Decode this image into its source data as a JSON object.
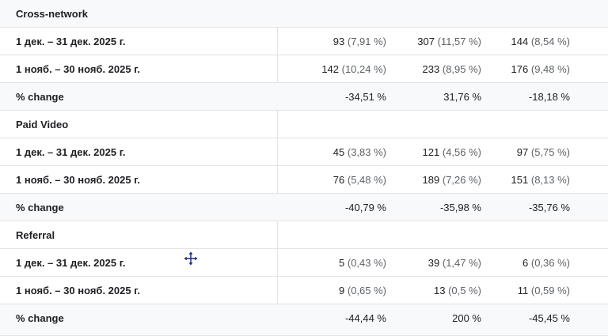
{
  "groups": [
    {
      "title": "Cross-network",
      "rows": [
        {
          "label": "1 дек. – 31 дек. 2025 г.",
          "c1v": "93",
          "c1p": " (7,91 %)",
          "c2v": "307",
          "c2p": " (11,57 %)",
          "c3v": "144",
          "c3p": " (8,54 %)"
        },
        {
          "label": "1 нояб. – 30 нояб. 2025 г.",
          "c1v": "142",
          "c1p": " (10,24 %)",
          "c2v": "233",
          "c2p": " (8,95 %)",
          "c3v": "176",
          "c3p": " (9,48 %)"
        }
      ],
      "change": {
        "label": "% change",
        "c1": "-34,51 %",
        "c2": "31,76 %",
        "c3": "-18,18 %"
      }
    },
    {
      "title": "Paid Video",
      "rows": [
        {
          "label": "1 дек. – 31 дек. 2025 г.",
          "c1v": "45",
          "c1p": " (3,83 %)",
          "c2v": "121",
          "c2p": " (4,56 %)",
          "c3v": "97",
          "c3p": " (5,75 %)"
        },
        {
          "label": "1 нояб. – 30 нояб. 2025 г.",
          "c1v": "76",
          "c1p": " (5,48 %)",
          "c2v": "189",
          "c2p": " (7,26 %)",
          "c3v": "151",
          "c3p": " (8,13 %)"
        }
      ],
      "change": {
        "label": "% change",
        "c1": "-40,79 %",
        "c2": "-35,98 %",
        "c3": "-35,76 %"
      }
    },
    {
      "title": "Referral",
      "rows": [
        {
          "label": "1 дек. – 31 дек. 2025 г.",
          "c1v": "5",
          "c1p": " (0,43 %)",
          "c2v": "39",
          "c2p": " (1,47 %)",
          "c3v": "6",
          "c3p": " (0,36 %)"
        },
        {
          "label": "1 нояб. – 30 нояб. 2025 г.",
          "c1v": "9",
          "c1p": " (0,65 %)",
          "c2v": "13",
          "c2p": " (0,5 %)",
          "c3v": "11",
          "c3p": " (0,59 %)"
        }
      ],
      "change": {
        "label": "% change",
        "c1": "-44,44 %",
        "c2": "200 %",
        "c3": "-45,45 %"
      }
    }
  ],
  "icons": {
    "cursor": "move-cursor-icon"
  },
  "colors": {
    "pct_text": "#5f6368",
    "shaded_row": "#f8f9fa",
    "border": "#e3e3e3"
  }
}
